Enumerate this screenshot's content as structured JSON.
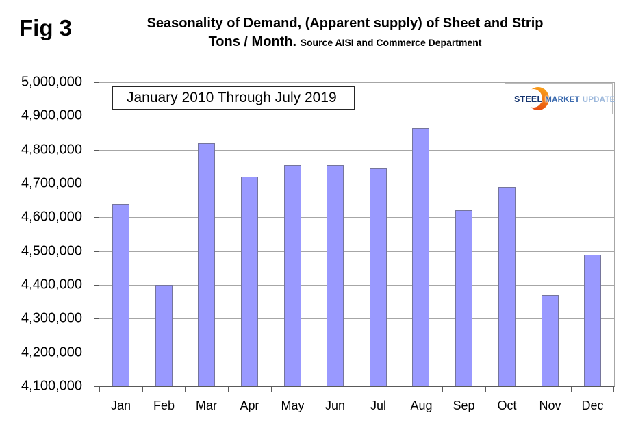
{
  "fig_label": "Fig 3",
  "title": {
    "line1": "Seasonality of Demand, (Apparent supply) of Sheet and Strip",
    "line2": "Tons / Month.",
    "source": "Source AISI and Commerce Department"
  },
  "legend": {
    "label": "January 2010 Through July 2019"
  },
  "logo": {
    "steel": "STEEL",
    "market": "MARKET",
    "update": "UPDATE",
    "crescent_icon": "orange-crescent"
  },
  "colors": {
    "bar_fill": "#9999FF",
    "bar_border": "#75759B",
    "gridline": "#A6A6A6",
    "axis": "#595959",
    "logo_orange": "#E8560F",
    "logo_navy": "#16356F",
    "logo_blue": "#3767AD",
    "logo_lightblue": "#9CB8DC"
  },
  "chart_data": {
    "type": "bar",
    "title": "Seasonality of Demand, (Apparent supply) of Sheet and Strip Tons / Month",
    "subtitle": "Source AISI and Commerce Department",
    "annotation": "January 2010 Through July 2019",
    "categories": [
      "Jan",
      "Feb",
      "Mar",
      "Apr",
      "May",
      "Jun",
      "Jul",
      "Aug",
      "Sep",
      "Oct",
      "Nov",
      "Dec"
    ],
    "values": [
      4640000,
      4400000,
      4820000,
      4720000,
      4755000,
      4755000,
      4745000,
      4865000,
      4620000,
      4690000,
      4370000,
      4490000
    ],
    "xlabel": "",
    "ylabel": "",
    "ylim": [
      4100000,
      5000000
    ],
    "ytick_step": 100000,
    "ytick_labels_top_to_bottom": [
      "5,000,000",
      "4,900,000",
      "4,800,000",
      "4,700,000",
      "4,600,000",
      "4,500,000",
      "4,400,000",
      "4,300,000",
      "4,200,000",
      "4,100,000"
    ],
    "grid": true,
    "legend_position": "top-left-box"
  }
}
